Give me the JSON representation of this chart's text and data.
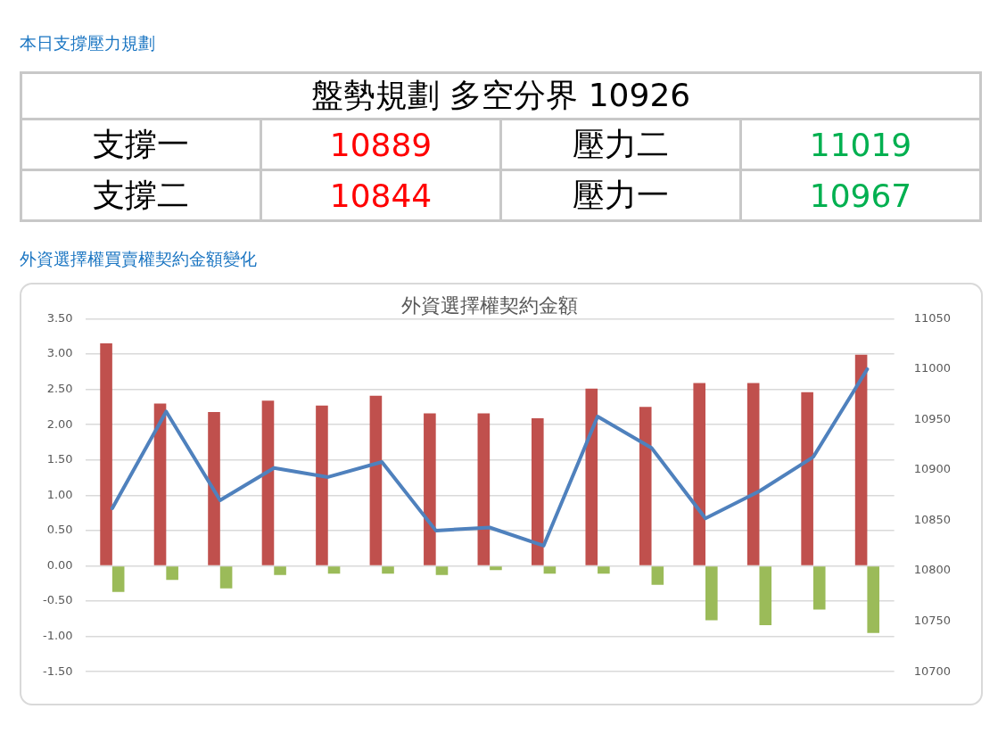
{
  "chart_data": [
    {
      "type": "other",
      "title": "本日支撐壓力規劃",
      "subtitle": "盤勢規劃 多空分界 10926",
      "categories": [
        "支撐一",
        "壓力二",
        "支撐二",
        "壓力一"
      ],
      "values": [
        10889,
        11019,
        10844,
        10967
      ],
      "colors": [
        "#ff0000",
        "#00b050",
        "#ff0000",
        "#00b050"
      ],
      "data_labels": true
    },
    {
      "type": "bar",
      "subtitle": "外資選擇權買賣權契約金額變化",
      "title": "外資選擇權契約金額",
      "categories": [
        null,
        null,
        null,
        null,
        null,
        null,
        null,
        null,
        null,
        null,
        null,
        null,
        null,
        null,
        null
      ],
      "series": [
        {
          "type": "bar",
          "color": "#c0504d",
          "values": [
            3.15,
            2.3,
            2.18,
            2.34,
            2.27,
            2.41,
            2.16,
            2.16,
            2.09,
            2.51,
            2.25,
            2.59,
            2.59,
            2.46,
            2.99
          ]
        },
        {
          "type": "bar",
          "color": "#9bbb59",
          "values": [
            -0.37,
            -0.2,
            -0.32,
            -0.13,
            -0.11,
            -0.11,
            -0.13,
            -0.06,
            -0.11,
            -0.11,
            -0.27,
            -0.77,
            -0.84,
            -0.62,
            -0.95
          ]
        },
        {
          "type": "line",
          "axis": "y2",
          "color": "#4f81bd",
          "values": [
            10862,
            10958,
            10870,
            10902,
            10893,
            10908,
            10840,
            10843,
            10825,
            10953,
            10922,
            10852,
            10879,
            10913,
            11000
          ]
        }
      ],
      "ylim": [
        -1.5,
        3.5
      ],
      "yticks": [
        {
          "value": -1.5,
          "label": "-1.50"
        },
        {
          "value": -1,
          "label": "-1.00"
        },
        {
          "value": -0.5,
          "label": "-0.50"
        },
        {
          "value": 0,
          "label": "0.00"
        },
        {
          "value": 0.5,
          "label": "0.50"
        },
        {
          "value": 1,
          "label": "1.00"
        },
        {
          "value": 1.5,
          "label": "1.50"
        },
        {
          "value": 2,
          "label": "2.00"
        },
        {
          "value": 2.5,
          "label": "2.50"
        },
        {
          "value": 3,
          "label": "3.00"
        },
        {
          "value": 3.5,
          "label": "3.50"
        }
      ],
      "y2lim": [
        10700,
        11050
      ],
      "y2ticks": [
        10700,
        10750,
        10800,
        10850,
        10900,
        10950,
        11000,
        11050
      ],
      "grid": "y",
      "legend": false,
      "marker": "none",
      "line_style": "solid"
    }
  ]
}
